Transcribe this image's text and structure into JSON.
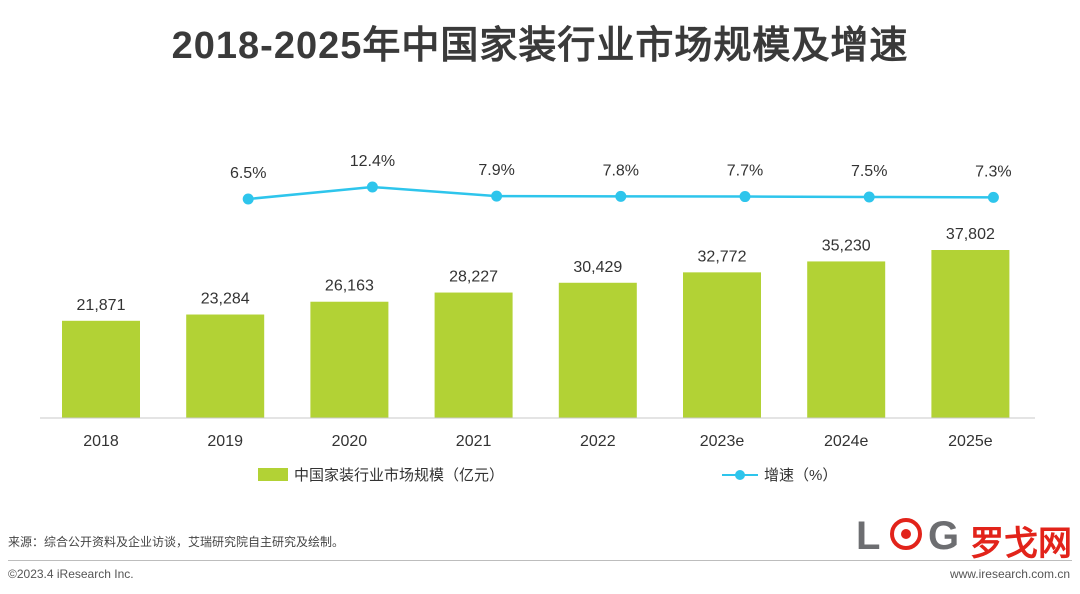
{
  "title": "2018-2025年中国家装行业市场规模及增速",
  "chart_data": {
    "type": "bar+line",
    "title": "2018-2025年中国家装行业市场规模及增速",
    "categories": [
      "2018",
      "2019",
      "2020",
      "2021",
      "2022",
      "2023e",
      "2024e",
      "2025e"
    ],
    "series": [
      {
        "name": "中国家装行业市场规模（亿元）",
        "type": "bar",
        "values": [
          21871,
          23284,
          26163,
          28227,
          30429,
          32772,
          35230,
          37802
        ],
        "labels": [
          "21,871",
          "23,284",
          "26,163",
          "28,227",
          "30,429",
          "32,772",
          "35,230",
          "37,802"
        ],
        "color": "#b2d235"
      },
      {
        "name": "增速（%）",
        "type": "line",
        "x": [
          "2019",
          "2020",
          "2021",
          "2022",
          "2023e",
          "2024e",
          "2025e"
        ],
        "values": [
          6.5,
          12.4,
          7.9,
          7.8,
          7.7,
          7.5,
          7.3
        ],
        "labels": [
          "6.5%",
          "12.4%",
          "7.9%",
          "7.8%",
          "7.7%",
          "7.5%",
          "7.3%"
        ],
        "color": "#2ec5ec"
      }
    ],
    "xlabel": "",
    "ylabel": "",
    "grid": false,
    "legend": "bottom"
  },
  "legend": {
    "bar_label": "中国家装行业市场规模（亿元）",
    "line_label": "增速（%）"
  },
  "footer": {
    "source": "来源：综合公开资料及企业访谈，艾瑞研究院自主研究及绘制。",
    "copyright": "©2023.4 iResearch Inc.",
    "website": "www.iresearch.com.cn"
  },
  "logo": {
    "letter_l": "L",
    "letter_g": "G",
    "chinese": "罗戈网"
  }
}
